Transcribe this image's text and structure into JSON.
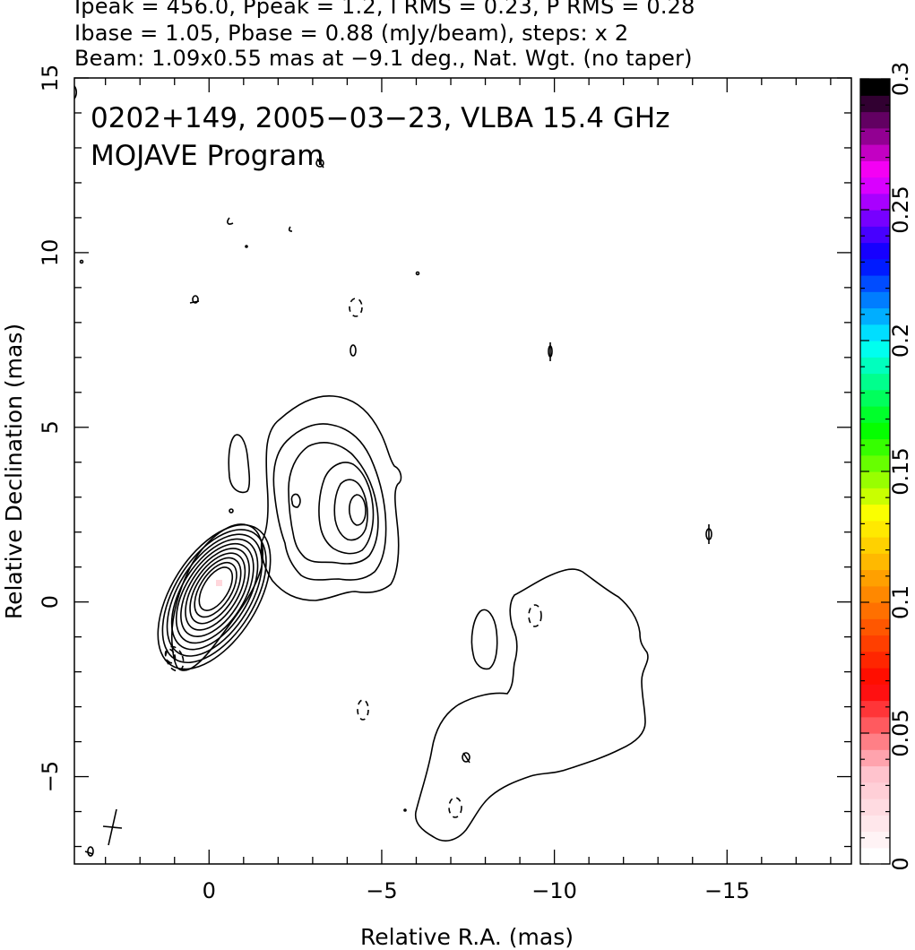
{
  "header": {
    "line1": "Ipeak = 456.0, Ppeak = 1.2, I RMS = 0.23, P RMS = 0.28",
    "line2": "Ibase = 1.05, Pbase = 0.88 (mJy/beam), steps: x 2",
    "line3": "Beam: 1.09x0.55 mas at −9.1 deg., Nat. Wgt. (no taper)"
  },
  "annotation": {
    "line1": "0202+149, 2005−03−23, VLBA 15.4 GHz",
    "line2": "MOJAVE Program"
  },
  "chart_data": {
    "type": "contour",
    "xlabel": "Relative R.A. (mas)",
    "ylabel": "Relative Declination (mas)",
    "xlim": [
      3.9,
      -18.6
    ],
    "ylim": [
      -7.5,
      15.0
    ],
    "x_ticks": [
      0,
      -5,
      -10,
      -15
    ],
    "x_tick_labels": [
      "0",
      "−5",
      "−10",
      "−15"
    ],
    "y_ticks": [
      -5,
      0,
      5,
      10,
      15
    ],
    "y_tick_labels": [
      "−5",
      "0",
      "5",
      "10",
      "15"
    ],
    "colorbar": {
      "range": [
        0,
        0.3
      ],
      "ticks": [
        0,
        0.05,
        0.1,
        0.15,
        0.2,
        0.25,
        0.3
      ],
      "tick_labels": [
        "0",
        "0.05",
        "0.1",
        "0.15",
        "0.2",
        "0.25",
        "0.3"
      ],
      "colors_bottom_to_top": [
        "#ffffff",
        "#ffc0cb",
        "#ff0000",
        "#ff8000",
        "#ffff00",
        "#00ff00",
        "#00ffff",
        "#0000ff",
        "#ff00ff",
        "#000000"
      ]
    },
    "core": {
      "x": -0.2,
      "y": 0.4,
      "contour_count": 10
    },
    "jet_knot": {
      "x": -4.2,
      "y": 2.7,
      "contour_count": 6
    },
    "beam": {
      "major_mas": 1.09,
      "minor_mas": 0.55,
      "pa_deg": -9.1,
      "center": [
        2.9,
        -6.5
      ]
    },
    "contour_levels_mJy": [
      1.05,
      2.1,
      4.2,
      8.4,
      16.8,
      33.6,
      67.2,
      134.4,
      268.8
    ]
  }
}
